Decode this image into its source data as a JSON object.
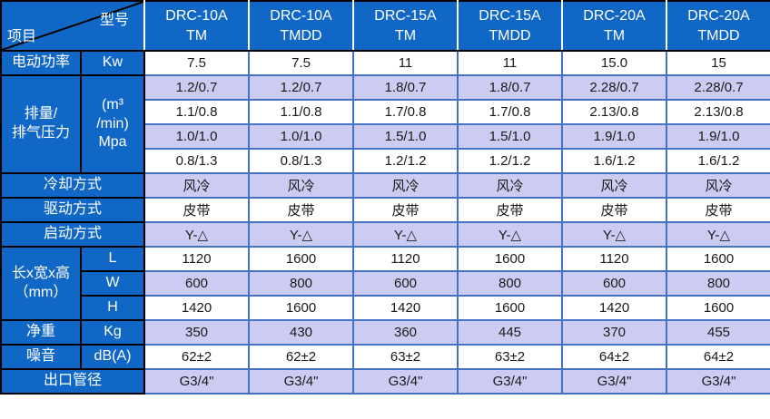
{
  "colors": {
    "header_bg": "#1067C5",
    "row_bg": "#FFFFFF",
    "row_alt_bg": "#CCCCF2",
    "grid_blue": "#4472C4",
    "grid_black": "#000000",
    "header_divider": "#FFFFFF",
    "header_text": "#FFFFFF",
    "data_text": "#1A1A1A"
  },
  "table": {
    "corner": {
      "model_label": "型号",
      "item_label": "项目"
    },
    "columns": [
      {
        "model": "DRC-10A",
        "variant": "TM"
      },
      {
        "model": "DRC-10A",
        "variant": "TMDD"
      },
      {
        "model": "DRC-15A",
        "variant": "TM"
      },
      {
        "model": "DRC-15A",
        "variant": "TMDD"
      },
      {
        "model": "DRC-20A",
        "variant": "TM"
      },
      {
        "model": "DRC-20A",
        "variant": "TMDD"
      }
    ],
    "groups": [
      {
        "name": "motor-power",
        "label_lines": [
          "电动功率"
        ],
        "unit_mode": "per-row",
        "unit_lines": [
          [
            "Kw"
          ]
        ],
        "rows": [
          [
            "7.5",
            "7.5",
            "11",
            "11",
            "15.0",
            "15"
          ]
        ]
      },
      {
        "name": "displacement-pressure",
        "label_lines": [
          "排量/",
          "排气压力"
        ],
        "unit_mode": "merged",
        "unit_lines": [
          [
            "(m³",
            "/min)",
            "Mpa"
          ]
        ],
        "rows": [
          [
            "1.2/0.7",
            "1.2/0.7",
            "1.8/0.7",
            "1.8/0.7",
            "2.28/0.7",
            "2.28/0.7"
          ],
          [
            "1.1/0.8",
            "1.1/0.8",
            "1.7/0.8",
            "1.7/0.8",
            "2.13/0.8",
            "2.13/0.8"
          ],
          [
            "1.0/1.0",
            "1.0/1.0",
            "1.5/1.0",
            "1.5/1.0",
            "1.9/1.0",
            "1.9/1.0"
          ],
          [
            "0.8/1.3",
            "0.8/1.3",
            "1.2/1.2",
            "1.2/1.2",
            "1.6/1.2",
            "1.6/1.2"
          ]
        ]
      },
      {
        "name": "cooling-method",
        "label_lines": [
          "冷却方式"
        ],
        "unit_mode": "none",
        "unit_lines": [],
        "rows": [
          [
            "风冷",
            "风冷",
            "风冷",
            "风冷",
            "风冷",
            "风冷"
          ]
        ]
      },
      {
        "name": "drive-method",
        "label_lines": [
          "驱动方式"
        ],
        "unit_mode": "none",
        "unit_lines": [],
        "rows": [
          [
            "皮带",
            "皮带",
            "皮带",
            "皮带",
            "皮带",
            "皮带"
          ]
        ]
      },
      {
        "name": "start-method",
        "label_lines": [
          "启动方式"
        ],
        "unit_mode": "none",
        "unit_lines": [],
        "rows": [
          [
            "Y-△",
            "Y-△",
            "Y-△",
            "Y-△",
            "Y-△",
            "Y-△"
          ]
        ]
      },
      {
        "name": "dimensions",
        "label_lines": [
          "长x宽x高",
          "（mm）"
        ],
        "unit_mode": "per-row",
        "unit_lines": [
          [
            "L"
          ],
          [
            "W"
          ],
          [
            "H"
          ]
        ],
        "rows": [
          [
            "1120",
            "1600",
            "1120",
            "1600",
            "1120",
            "1600"
          ],
          [
            "600",
            "800",
            "600",
            "800",
            "600",
            "800"
          ],
          [
            "1420",
            "1600",
            "1420",
            "1600",
            "1420",
            "1600"
          ]
        ]
      },
      {
        "name": "net-weight",
        "label_lines": [
          "净重"
        ],
        "unit_mode": "per-row",
        "unit_lines": [
          [
            "Kg"
          ]
        ],
        "rows": [
          [
            "350",
            "430",
            "360",
            "445",
            "370",
            "455"
          ]
        ]
      },
      {
        "name": "noise",
        "label_lines": [
          "噪音"
        ],
        "unit_mode": "per-row",
        "unit_lines": [
          [
            "dB(A)"
          ]
        ],
        "rows": [
          [
            "62±2",
            "62±2",
            "63±2",
            "63±2",
            "64±2",
            "64±2"
          ]
        ]
      },
      {
        "name": "outlet-pipe-diameter",
        "label_lines": [
          "出口管径"
        ],
        "unit_mode": "none",
        "unit_lines": [],
        "rows": [
          [
            "G3/4\"",
            "G3/4\"",
            "G3/4\"",
            "G3/4\"",
            "G3/4\"",
            "G3/4\""
          ]
        ]
      }
    ]
  }
}
